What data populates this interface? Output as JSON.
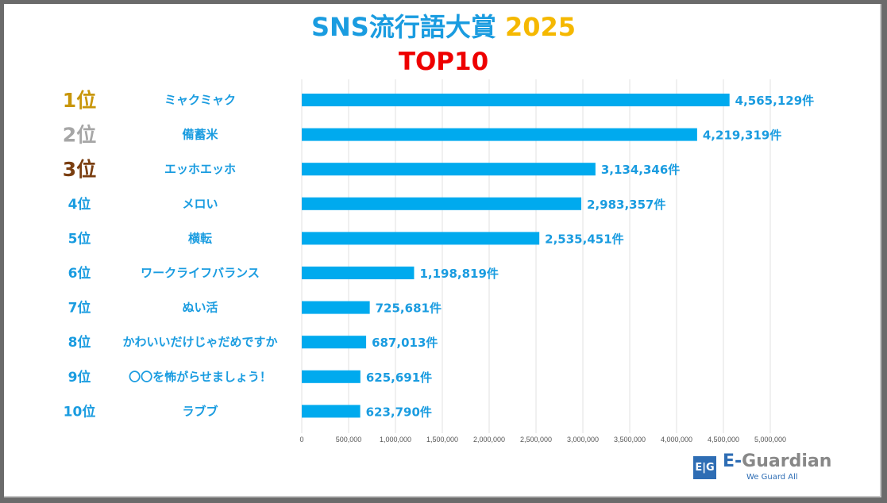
{
  "title": {
    "main": "SNS流行語大賞",
    "year": "2025",
    "subtitle": "TOP10"
  },
  "colors": {
    "bar": "#00aaee",
    "text_blue": "#1a9ce0",
    "gold": "#c8960a",
    "silver": "#a6a6a6",
    "bronze": "#7a3e10",
    "title_year": "#f5b800",
    "subtitle": "#ee0000"
  },
  "logo": {
    "mark": "E|G",
    "name_prefix": "E-",
    "name_rest": "Guardian",
    "tagline": "We Guard All"
  },
  "chart_data": {
    "type": "bar",
    "orientation": "horizontal",
    "title": "SNS流行語大賞 2025 TOP10",
    "ranks": [
      "1位",
      "2位",
      "3位",
      "4位",
      "5位",
      "6位",
      "7位",
      "8位",
      "9位",
      "10位"
    ],
    "categories": [
      "ミャクミャク",
      "備蓄米",
      "エッホエッホ",
      "メロい",
      "横転",
      "ワークライフバランス",
      "ぬい活",
      "かわいいだけじゃだめですか",
      "〇〇を怖がらせましょう！",
      "ラブブ"
    ],
    "values": [
      4565129,
      4219319,
      3134346,
      2983357,
      2535451,
      1198819,
      725681,
      687013,
      625691,
      623790
    ],
    "value_labels": [
      "4,565,129件",
      "4,219,319件",
      "3,134,346件",
      "2,983,357件",
      "2,535,451件",
      "1,198,819件",
      "725,681件",
      "687,013件",
      "625,691件",
      "623,790件"
    ],
    "xlim": [
      0,
      5000000
    ],
    "xticks": [
      0,
      500000,
      1000000,
      1500000,
      2000000,
      2500000,
      3000000,
      3500000,
      4000000,
      4500000,
      5000000
    ],
    "xtick_labels": [
      "0",
      "500,000",
      "1,000,000",
      "1,500,000",
      "2,000,000",
      "2,500,000",
      "3,000,000",
      "3,500,000",
      "4,000,000",
      "4,500,000",
      "5,000,000"
    ],
    "grid": true,
    "xlabel": "",
    "ylabel": ""
  }
}
